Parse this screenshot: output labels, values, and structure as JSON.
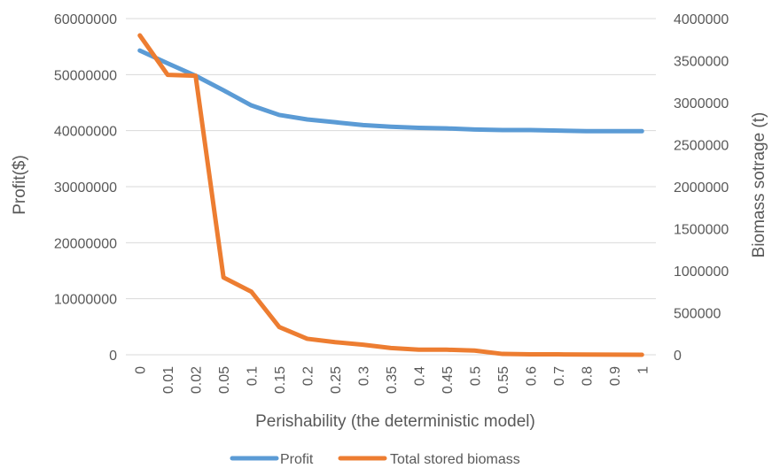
{
  "chart_data": {
    "type": "line",
    "categories": [
      "0",
      "0.01",
      "0.02",
      "0.05",
      "0.1",
      "0.15",
      "0.2",
      "0.25",
      "0.3",
      "0.35",
      "0.4",
      "0.45",
      "0.5",
      "0.55",
      "0.6",
      "0.7",
      "0.8",
      "0.9",
      "1"
    ],
    "xlabel": "Perishability (the deterministic model)",
    "ylabel": "Profit($)",
    "y2label": "Biomass sotrage (t)",
    "ylim": [
      0,
      60000000
    ],
    "y2lim": [
      0,
      4000000
    ],
    "yticks": [
      "0",
      "10000000",
      "20000000",
      "30000000",
      "40000000",
      "50000000",
      "60000000"
    ],
    "y2ticks": [
      "0",
      "500000",
      "1000000",
      "1500000",
      "2000000",
      "2500000",
      "3000000",
      "3500000",
      "4000000"
    ],
    "grid": true,
    "legend_position": "bottom",
    "series": [
      {
        "name": "Profit",
        "axis": "left",
        "color": "#5b9bd5",
        "values": [
          54300000,
          52000000,
          49800000,
          47200000,
          44500000,
          42800000,
          42000000,
          41500000,
          41000000,
          40700000,
          40500000,
          40400000,
          40200000,
          40100000,
          40100000,
          40000000,
          39900000,
          39900000,
          39900000
        ]
      },
      {
        "name": "Total stored biomass",
        "axis": "right",
        "color": "#ed7d31",
        "values": [
          3800000,
          3330000,
          3320000,
          920000,
          750000,
          330000,
          190000,
          150000,
          120000,
          80000,
          60000,
          60000,
          50000,
          10000,
          5000,
          5000,
          2000,
          1000,
          0
        ]
      }
    ]
  }
}
